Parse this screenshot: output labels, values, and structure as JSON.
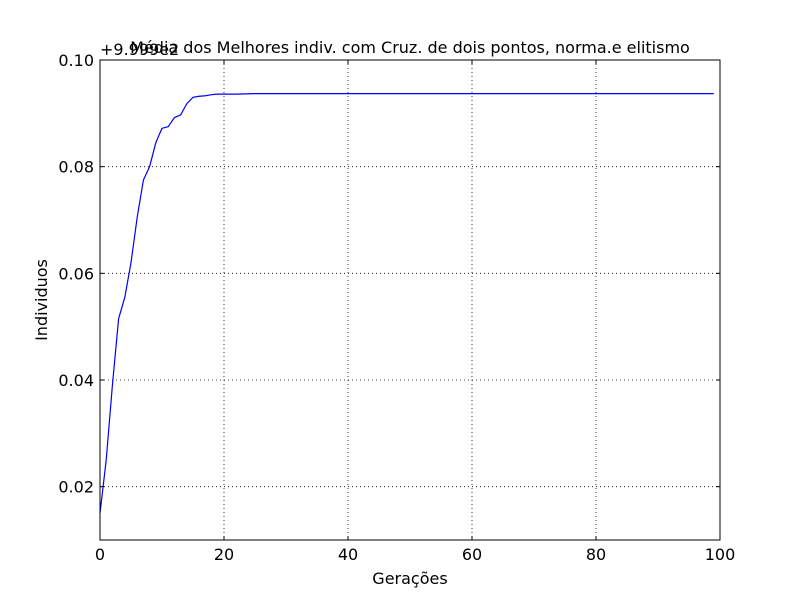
{
  "chart_data": {
    "type": "line",
    "title": "Média dos Melhores indiv. com Cruz. de dois pontos, norma.e elitismo",
    "xlabel": "Gerações",
    "ylabel": "Individuos",
    "y_offset_label": "+9.999e2",
    "xlim": [
      0,
      100
    ],
    "ylim": [
      0.01,
      0.1
    ],
    "x_ticks": [
      0,
      20,
      40,
      60,
      80,
      100
    ],
    "x_tick_labels": [
      "0",
      "20",
      "40",
      "60",
      "80",
      "100"
    ],
    "y_ticks": [
      0.02,
      0.04,
      0.06,
      0.08,
      0.1
    ],
    "y_tick_labels": [
      "0.02",
      "0.04",
      "0.06",
      "0.08",
      "0.10"
    ],
    "grid": true,
    "legend": "none",
    "series": [
      {
        "color": "#0000ff",
        "x": [
          0,
          1,
          2,
          3,
          4,
          5,
          6,
          7,
          8,
          9,
          10,
          11,
          12,
          13,
          14,
          15,
          16,
          17,
          18,
          19,
          20,
          22,
          25,
          30,
          40,
          50,
          60,
          70,
          80,
          90,
          99
        ],
        "y": [
          0.015,
          0.025,
          0.039,
          0.0515,
          0.0555,
          0.062,
          0.0705,
          0.0775,
          0.08,
          0.0845,
          0.0872,
          0.0875,
          0.0892,
          0.0897,
          0.0918,
          0.093,
          0.0932,
          0.0933,
          0.0935,
          0.0936,
          0.0936,
          0.0936,
          0.0937,
          0.0937,
          0.0937,
          0.0937,
          0.0937,
          0.0937,
          0.0937,
          0.0937,
          0.0937
        ]
      }
    ]
  }
}
